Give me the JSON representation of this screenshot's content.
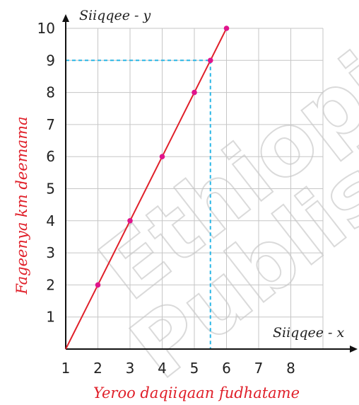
{
  "watermark": [
    "Ethiopia",
    "Publisher"
  ],
  "chart_data": {
    "type": "line",
    "x_axis_label": "Siiqqee - x",
    "y_axis_label": "Siiqqee - y",
    "xlabel": "Yeroo daqiiqaan fudhatame",
    "ylabel": "Fageenya km deemama",
    "x_tick_labels": [
      "1",
      "2",
      "3",
      "4",
      "5",
      "6",
      "7",
      "8"
    ],
    "y_tick_labels": [
      "1",
      "2",
      "3",
      "4",
      "5",
      "6",
      "7",
      "8",
      "9",
      "10"
    ],
    "xlim": [
      1,
      9
    ],
    "ylim": [
      0,
      10
    ],
    "grid": true,
    "series": [
      {
        "color": "#e0202a",
        "marker_color": "#e0148c",
        "points": [
          {
            "x": 1,
            "y": 0
          },
          {
            "x": 2,
            "y": 2
          },
          {
            "x": 3,
            "y": 4
          },
          {
            "x": 4,
            "y": 6
          },
          {
            "x": 5,
            "y": 8
          },
          {
            "x": 5.5,
            "y": 9
          },
          {
            "x": 6,
            "y": 10
          }
        ],
        "marked_x": [
          2,
          3,
          4,
          5,
          5.5,
          6
        ]
      }
    ],
    "guide_lines": [
      {
        "x": 5.5,
        "y": 9,
        "color": "#29b6e6",
        "style": "dashed"
      }
    ]
  }
}
